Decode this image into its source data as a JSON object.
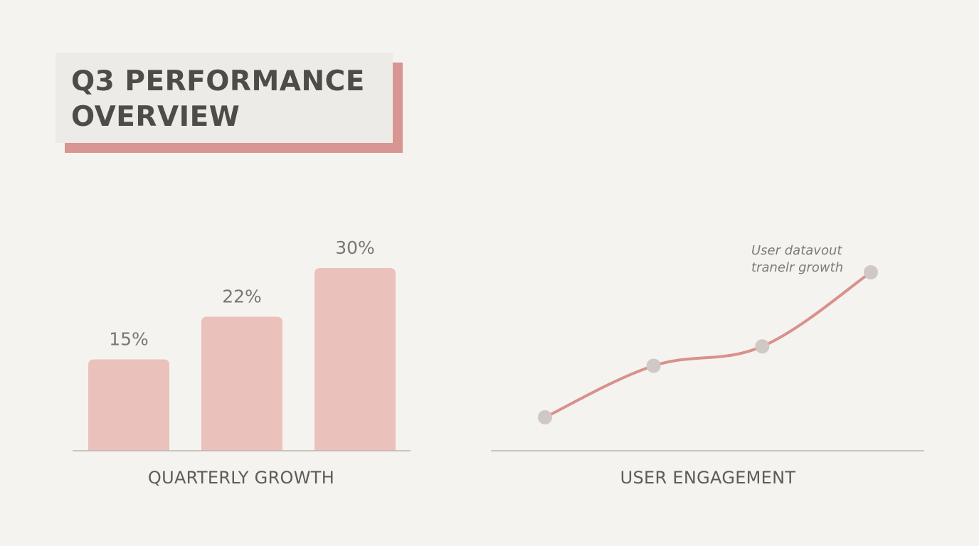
{
  "title": {
    "line1": "Q3 PERFORMANCE",
    "line2": "OVERVIEW"
  },
  "colors": {
    "bar_fill": "#ebc1bb",
    "line_stroke": "#d9918b",
    "marker_fill": "#cfc8c4",
    "axis": "#b9b6b2",
    "title_accent": "#d99591"
  },
  "chart_data": [
    {
      "type": "bar",
      "title": "QUARTERLY GROWTH",
      "categories": [
        "",
        "",
        ""
      ],
      "values": [
        15,
        22,
        30
      ],
      "data_labels": [
        "15%",
        "22%",
        "30%"
      ],
      "unit": "%",
      "ylim": [
        0,
        30
      ],
      "grid": false,
      "xlabel": "",
      "ylabel": ""
    },
    {
      "type": "line",
      "title": "USER ENGAGEMENT",
      "x": [
        1,
        2,
        3,
        4
      ],
      "values": [
        10,
        26,
        32,
        55
      ],
      "annotation": {
        "line1": "User datavout",
        "line2": "tranelr growth"
      },
      "grid": false,
      "xlabel": "",
      "ylabel": ""
    }
  ]
}
